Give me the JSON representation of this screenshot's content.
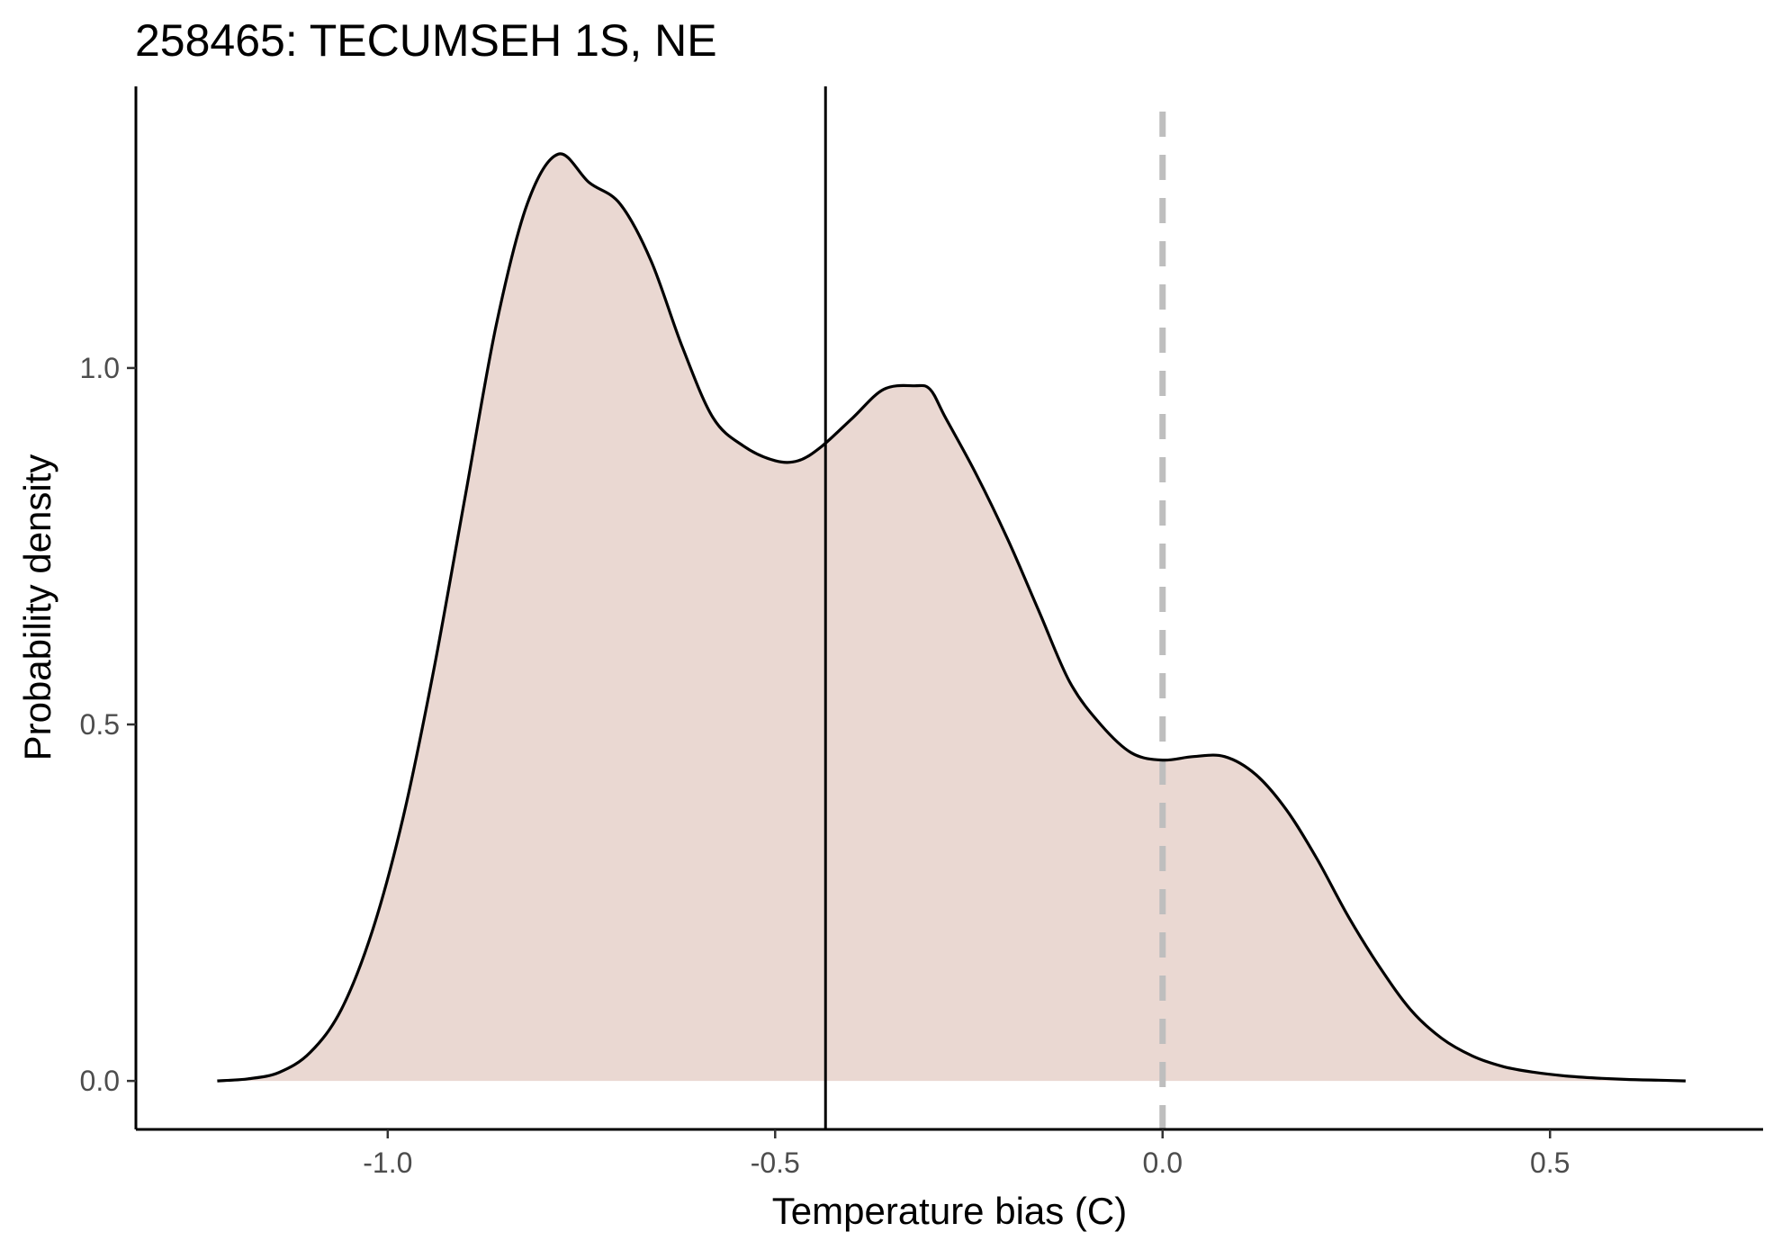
{
  "chart_data": {
    "type": "area",
    "title": "258465: TECUMSEH 1S, NE",
    "xlabel": "Temperature bias (C)",
    "ylabel": "Probability density",
    "xlim": [
      -1.325,
      0.775
    ],
    "ylim": [
      -0.068,
      1.395
    ],
    "x_ticks": [
      {
        "value": -1.0,
        "label": "-1.0"
      },
      {
        "value": -0.5,
        "label": "-0.5"
      },
      {
        "value": 0.0,
        "label": "0.0"
      },
      {
        "value": 0.5,
        "label": "0.5"
      }
    ],
    "y_ticks": [
      {
        "value": 0.0,
        "label": "0.0"
      },
      {
        "value": 0.5,
        "label": "0.5"
      },
      {
        "value": 1.0,
        "label": "1.0"
      }
    ],
    "grid": false,
    "legend": "none",
    "fill_color": "#ead8d2",
    "line_color": "#000000",
    "vlines": [
      {
        "name": "mean-line",
        "x": -0.435,
        "color": "#000000",
        "style": "solid"
      },
      {
        "name": "zero-reference-line",
        "x": 0.0,
        "color": "#bebebe",
        "style": "dashed"
      }
    ],
    "series": [
      {
        "x": [
          -1.22,
          -1.18,
          -1.14,
          -1.1,
          -1.06,
          -1.02,
          -0.98,
          -0.94,
          -0.9,
          -0.86,
          -0.82,
          -0.78,
          -0.74,
          -0.7,
          -0.66,
          -0.62,
          -0.58,
          -0.54,
          -0.5,
          -0.47,
          -0.44,
          -0.4,
          -0.36,
          -0.32,
          -0.3,
          -0.28,
          -0.24,
          -0.2,
          -0.16,
          -0.12,
          -0.08,
          -0.04,
          0.0,
          0.04,
          0.08,
          0.12,
          0.16,
          0.2,
          0.24,
          0.28,
          0.32,
          0.36,
          0.4,
          0.44,
          0.48,
          0.52,
          0.56,
          0.6,
          0.64,
          0.675
        ],
        "y": [
          0.0,
          0.003,
          0.012,
          0.04,
          0.1,
          0.21,
          0.37,
          0.58,
          0.82,
          1.06,
          1.23,
          1.3,
          1.26,
          1.23,
          1.15,
          1.03,
          0.93,
          0.89,
          0.87,
          0.87,
          0.89,
          0.93,
          0.97,
          0.975,
          0.97,
          0.93,
          0.85,
          0.76,
          0.66,
          0.56,
          0.5,
          0.46,
          0.45,
          0.455,
          0.455,
          0.43,
          0.38,
          0.31,
          0.23,
          0.16,
          0.1,
          0.06,
          0.035,
          0.02,
          0.012,
          0.007,
          0.004,
          0.002,
          0.001,
          0.0
        ]
      }
    ]
  }
}
